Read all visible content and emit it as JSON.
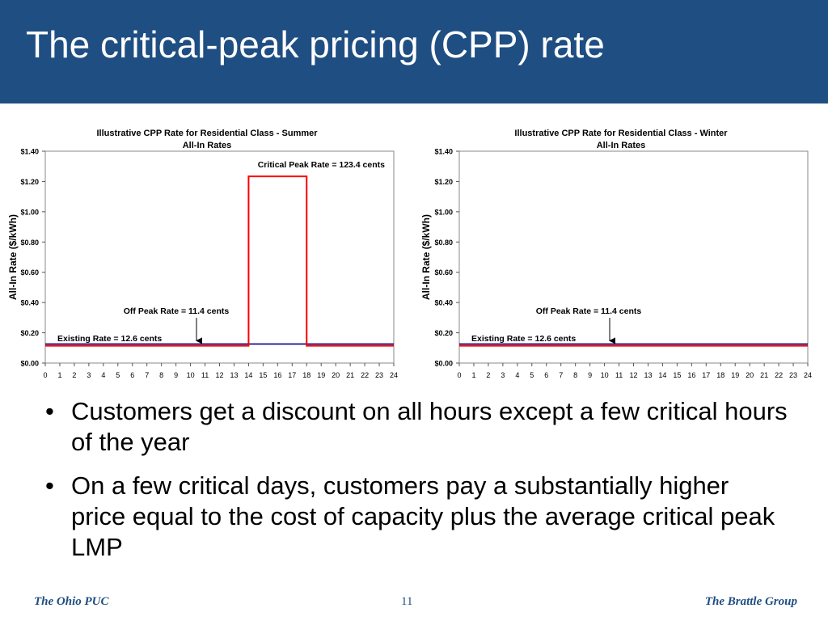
{
  "slide": {
    "title": "The critical-peak pricing (CPP) rate",
    "bullets": [
      "Customers get a discount on all hours except a few critical hours of the year",
      "On a few critical days, customers pay a substantially higher price equal to the cost of capacity plus the average critical peak LMP"
    ],
    "bullet_symbol": "•"
  },
  "footer": {
    "left": "The Ohio PUC",
    "page": "11",
    "right": "The Brattle Group"
  },
  "colors": {
    "title_bar": "#1f4e82",
    "cpp_line": "#ff0000",
    "existing_line": "#000080",
    "footer_text": "#1f4e82"
  },
  "chart_data": [
    {
      "type": "line",
      "title": "Illustrative CPP Rate for Residential Class - Summer",
      "subtitle": "All-In Rates",
      "ylabel": "All-In Rate ($/kWh)",
      "xlabel": "",
      "xlim": [
        0,
        24
      ],
      "ylim": [
        0,
        1.4
      ],
      "x_ticks": [
        "0",
        "1",
        "2",
        "3",
        "4",
        "5",
        "6",
        "7",
        "8",
        "9",
        "10",
        "11",
        "12",
        "13",
        "14",
        "15",
        "16",
        "17",
        "18",
        "19",
        "20",
        "21",
        "22",
        "23",
        "24"
      ],
      "y_ticks": [
        "$0.00",
        "$0.20",
        "$0.40",
        "$0.60",
        "$0.80",
        "$1.00",
        "$1.20",
        "$1.40"
      ],
      "grid": false,
      "series": [
        {
          "name": "CPP",
          "x": [
            0,
            14,
            14,
            18,
            18,
            24
          ],
          "y": [
            0.114,
            0.114,
            1.234,
            1.234,
            0.114,
            0.114
          ]
        },
        {
          "name": "Existing",
          "x": [
            0,
            24
          ],
          "y": [
            0.126,
            0.126
          ]
        }
      ],
      "annotations": [
        {
          "text": "Critical Peak Rate = 123.4 cents",
          "arrow": false
        },
        {
          "text": "Off Peak Rate = 11.4 cents",
          "arrow": true
        },
        {
          "text": "Existing Rate = 12.6 cents",
          "arrow": false
        }
      ]
    },
    {
      "type": "line",
      "title": "Illustrative CPP Rate for Residential Class - Winter",
      "subtitle": "All-In Rates",
      "ylabel": "All-In Rate ($/kWh)",
      "xlabel": "",
      "xlim": [
        0,
        24
      ],
      "ylim": [
        0,
        1.4
      ],
      "x_ticks": [
        "0",
        "1",
        "2",
        "3",
        "4",
        "5",
        "6",
        "7",
        "8",
        "9",
        "10",
        "11",
        "12",
        "13",
        "14",
        "15",
        "16",
        "17",
        "18",
        "19",
        "20",
        "21",
        "22",
        "23",
        "24"
      ],
      "y_ticks": [
        "$0.00",
        "$0.20",
        "$0.40",
        "$0.60",
        "$0.80",
        "$1.00",
        "$1.20",
        "$1.40"
      ],
      "grid": false,
      "series": [
        {
          "name": "CPP",
          "x": [
            0,
            24
          ],
          "y": [
            0.114,
            0.114
          ]
        },
        {
          "name": "Existing",
          "x": [
            0,
            24
          ],
          "y": [
            0.126,
            0.126
          ]
        }
      ],
      "annotations": [
        {
          "text": "Off Peak Rate = 11.4 cents",
          "arrow": true
        },
        {
          "text": "Existing Rate = 12.6 cents",
          "arrow": false
        }
      ]
    }
  ]
}
